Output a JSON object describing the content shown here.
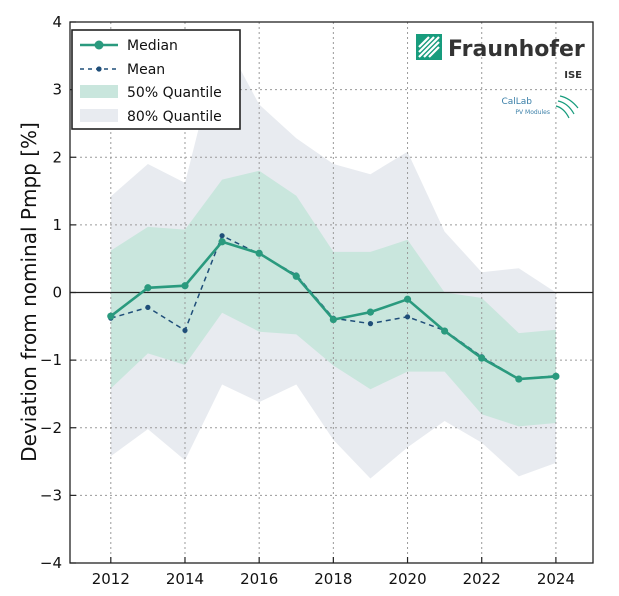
{
  "chart_data": {
    "type": "line",
    "title": "",
    "xlabel": "",
    "ylabel": "Deviation from nominal Pmpp [%]",
    "xlim": [
      2010.9,
      2025.0
    ],
    "ylim": [
      -4,
      4
    ],
    "x_ticks": [
      2012,
      2014,
      2016,
      2018,
      2020,
      2022,
      2024
    ],
    "y_ticks": [
      -4,
      -3,
      -2,
      -1,
      0,
      1,
      2,
      3,
      4
    ],
    "grid": true,
    "legend_position": "top-left",
    "x": [
      2012,
      2013,
      2014,
      2015,
      2016,
      2017,
      2018,
      2019,
      2020,
      2021,
      2022,
      2023,
      2024
    ],
    "series": [
      {
        "name": "Median",
        "style": "solid-marker",
        "color": "#2a9a7e",
        "values": [
          -0.35,
          0.07,
          0.1,
          0.75,
          0.58,
          0.24,
          -0.4,
          -0.29,
          -0.1,
          -0.57,
          -0.97,
          -1.28,
          -1.24
        ]
      },
      {
        "name": "Mean",
        "style": "dashed-marker",
        "color": "#1f4e79",
        "values": [
          -0.38,
          -0.22,
          -0.56,
          0.84,
          0.57,
          0.26,
          -0.38,
          -0.46,
          -0.36,
          -0.56,
          -0.95,
          -1.28,
          -1.23
        ]
      }
    ],
    "bands": [
      {
        "name": "80% Quantile",
        "color": "#e8ebf0",
        "upper": [
          1.42,
          1.9,
          1.62,
          3.8,
          2.78,
          2.28,
          1.9,
          1.75,
          2.08,
          0.9,
          0.3,
          0.36,
          0.0
        ],
        "lower": [
          -2.42,
          -2.02,
          -2.48,
          -1.36,
          -1.62,
          -1.36,
          -2.18,
          -2.75,
          -2.29,
          -1.9,
          -2.22,
          -2.72,
          -2.52
        ]
      },
      {
        "name": "50% Quantile",
        "color": "#c9e6dd",
        "upper": [
          0.62,
          0.97,
          0.93,
          1.67,
          1.8,
          1.43,
          0.6,
          0.6,
          0.78,
          0.0,
          -0.08,
          -0.6,
          -0.55
        ]
      },
      {
        "name": "50% Quantile lower",
        "color": "#c9e6dd",
        "lower": [
          -1.42,
          -0.9,
          -1.07,
          -0.3,
          -0.58,
          -0.62,
          -1.08,
          -1.43,
          -1.17,
          -1.17,
          -1.8,
          -1.98,
          -1.93
        ]
      }
    ],
    "legend": [
      {
        "label": "Median",
        "kind": "line-marker"
      },
      {
        "label": "Mean",
        "kind": "dashed-marker"
      },
      {
        "label": "50% Quantile",
        "kind": "patch-50"
      },
      {
        "label": "80% Quantile",
        "kind": "patch-80"
      }
    ]
  },
  "logos": {
    "main_brand": "Fraunhofer",
    "main_sub": "ISE",
    "secondary_brand": "CalLab",
    "secondary_sub": "PV Modules",
    "accent_color": "#179c7d"
  }
}
